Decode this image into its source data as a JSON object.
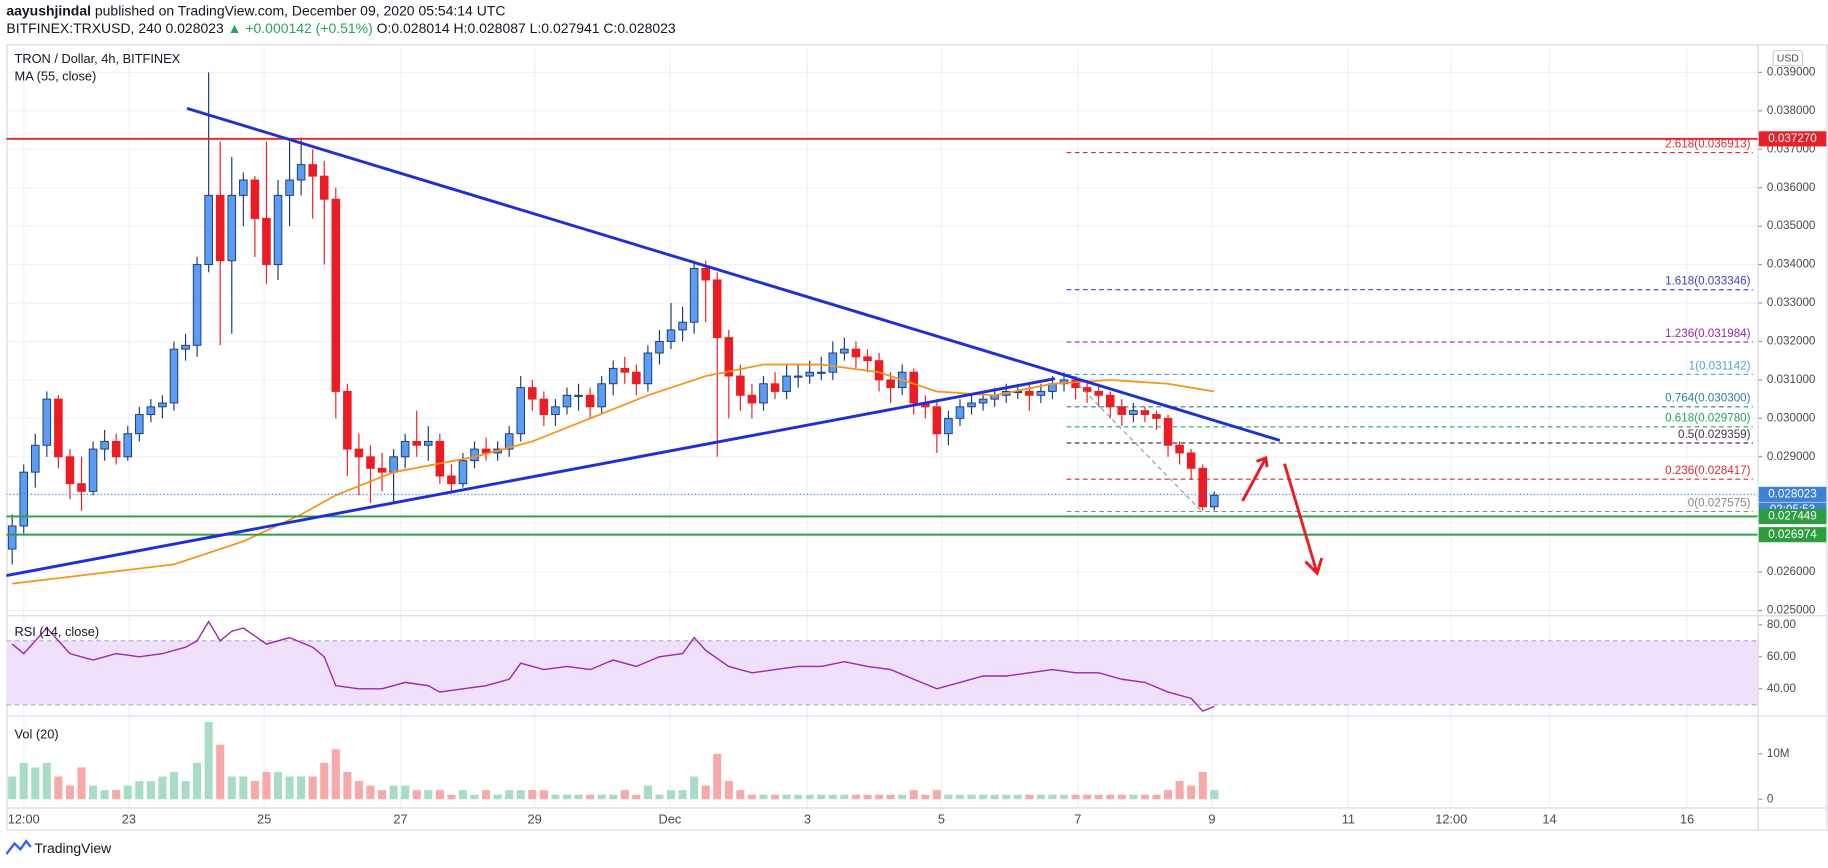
{
  "header": {
    "author": "aayushjindal",
    "published": "published on TradingView.com, December 09, 2020 05:54:14 UTC",
    "symbol": "BITFINEX:TRXUSD, 240",
    "last": "0.028023",
    "change": "▲ +0.000142 (+0.51%)",
    "ohlc": "O:0.028014 H:0.028087 L:0.027941 C:0.028023"
  },
  "currency": "USD",
  "logo": "TradingView",
  "chart_data": [
    {
      "type": "candlestick",
      "title": "TRON / Dollar, 4h, BITFINEX",
      "up_color": "#5b9cf6",
      "up_border": "#1b3a6b",
      "down_color": "#ec1c24",
      "grid": true,
      "open": [
        0.0266,
        0.0272,
        0.0286,
        0.0293,
        0.0305,
        0.029,
        0.0283,
        0.0281,
        0.0292,
        0.0294,
        0.029,
        0.0296,
        0.0301,
        0.0303,
        0.0304,
        0.0318,
        0.0319,
        0.034,
        0.0358,
        0.0341,
        0.0358,
        0.0362,
        0.0352,
        0.034,
        0.0358,
        0.0362,
        0.0366,
        0.0363,
        0.0357,
        0.0307,
        0.0292,
        0.029,
        0.0287,
        0.0286,
        0.029,
        0.0294,
        0.0293,
        0.0294,
        0.0285,
        0.0283,
        0.0289,
        0.0292,
        0.0291,
        0.0292,
        0.0296,
        0.0308,
        0.0305,
        0.0301,
        0.0303,
        0.0306,
        0.0306,
        0.0303,
        0.0309,
        0.0313,
        0.0312,
        0.0309,
        0.0317,
        0.032,
        0.0323,
        0.0325,
        0.0339,
        0.0336,
        0.0321,
        0.0311,
        0.0306,
        0.0304,
        0.0309,
        0.0307,
        0.0311,
        0.0311,
        0.0312,
        0.0312,
        0.0317,
        0.0318,
        0.0316,
        0.0315,
        0.031,
        0.0308,
        0.0312,
        0.0304,
        0.0303,
        0.0296,
        0.03,
        0.0303,
        0.0304,
        0.0305,
        0.0306,
        0.0307,
        0.0307,
        0.0306,
        0.0307,
        0.0309,
        0.031,
        0.0308,
        0.0307,
        0.0306,
        0.0303,
        0.0301,
        0.0302,
        0.0301,
        0.03,
        0.0293,
        0.0291,
        0.0287,
        0.0277
      ],
      "high": [
        0.0275,
        0.0288,
        0.0296,
        0.0307,
        0.0306,
        0.0292,
        0.029,
        0.0294,
        0.0297,
        0.0296,
        0.0298,
        0.0303,
        0.0305,
        0.0306,
        0.032,
        0.0322,
        0.0342,
        0.039,
        0.0372,
        0.0368,
        0.0364,
        0.0363,
        0.0372,
        0.0362,
        0.0372,
        0.0373,
        0.037,
        0.0367,
        0.036,
        0.0309,
        0.0296,
        0.0293,
        0.0291,
        0.0292,
        0.0296,
        0.0302,
        0.0298,
        0.0296,
        0.0288,
        0.0291,
        0.0294,
        0.0295,
        0.0294,
        0.0298,
        0.0311,
        0.031,
        0.0307,
        0.0305,
        0.0308,
        0.0309,
        0.0308,
        0.0311,
        0.0315,
        0.0316,
        0.0314,
        0.0319,
        0.0323,
        0.033,
        0.0329,
        0.0341,
        0.0341,
        0.0338,
        0.0323,
        0.0314,
        0.0309,
        0.0311,
        0.0312,
        0.0314,
        0.0314,
        0.0315,
        0.0316,
        0.032,
        0.0321,
        0.032,
        0.0318,
        0.0317,
        0.0312,
        0.0314,
        0.0313,
        0.0306,
        0.0305,
        0.0302,
        0.0305,
        0.0306,
        0.0307,
        0.0308,
        0.0309,
        0.0309,
        0.0309,
        0.0309,
        0.0311,
        0.0312,
        0.0311,
        0.031,
        0.0309,
        0.0307,
        0.0305,
        0.0304,
        0.0303,
        0.0302,
        0.0301,
        0.0294,
        0.0292,
        0.0288,
        0.0281
      ],
      "low": [
        0.0262,
        0.027,
        0.0282,
        0.029,
        0.0287,
        0.0279,
        0.0276,
        0.028,
        0.0289,
        0.0288,
        0.0289,
        0.0294,
        0.0299,
        0.03,
        0.0302,
        0.0315,
        0.0316,
        0.0338,
        0.0319,
        0.0322,
        0.035,
        0.0342,
        0.0335,
        0.0336,
        0.035,
        0.0358,
        0.0352,
        0.034,
        0.03,
        0.0285,
        0.028,
        0.0278,
        0.0281,
        0.0278,
        0.0287,
        0.029,
        0.0289,
        0.0283,
        0.0281,
        0.0282,
        0.0287,
        0.0289,
        0.0289,
        0.029,
        0.0294,
        0.0302,
        0.0298,
        0.0298,
        0.0301,
        0.0302,
        0.03,
        0.0301,
        0.0306,
        0.0309,
        0.0306,
        0.0307,
        0.0314,
        0.0318,
        0.032,
        0.0322,
        0.0325,
        0.029,
        0.03,
        0.0302,
        0.03,
        0.0302,
        0.0305,
        0.0305,
        0.0308,
        0.0309,
        0.031,
        0.031,
        0.0315,
        0.0313,
        0.0312,
        0.0307,
        0.0304,
        0.0306,
        0.0301,
        0.03,
        0.0291,
        0.0293,
        0.0298,
        0.0301,
        0.0302,
        0.0303,
        0.0304,
        0.0305,
        0.0302,
        0.0304,
        0.0305,
        0.0307,
        0.0305,
        0.0304,
        0.0303,
        0.03,
        0.0298,
        0.0299,
        0.0299,
        0.0297,
        0.029,
        0.0288,
        0.0284,
        0.0276,
        0.0276
      ],
      "close": [
        0.0272,
        0.0286,
        0.0293,
        0.0305,
        0.029,
        0.0283,
        0.0281,
        0.0292,
        0.0294,
        0.029,
        0.0296,
        0.0301,
        0.0303,
        0.0304,
        0.0318,
        0.0319,
        0.034,
        0.0358,
        0.0341,
        0.0358,
        0.0362,
        0.0352,
        0.034,
        0.0358,
        0.0362,
        0.0366,
        0.0363,
        0.0357,
        0.0307,
        0.0292,
        0.029,
        0.0287,
        0.0286,
        0.029,
        0.0294,
        0.0293,
        0.0294,
        0.0285,
        0.0283,
        0.0289,
        0.0292,
        0.0291,
        0.0292,
        0.0296,
        0.0308,
        0.0305,
        0.0301,
        0.0303,
        0.0306,
        0.0306,
        0.0303,
        0.0309,
        0.0313,
        0.0312,
        0.0309,
        0.0317,
        0.032,
        0.0323,
        0.0325,
        0.0339,
        0.0336,
        0.0321,
        0.0311,
        0.0306,
        0.0304,
        0.0309,
        0.0307,
        0.0311,
        0.0311,
        0.0312,
        0.0312,
        0.0317,
        0.0318,
        0.0316,
        0.0315,
        0.031,
        0.0308,
        0.0312,
        0.0304,
        0.0303,
        0.0296,
        0.03,
        0.0303,
        0.0304,
        0.0305,
        0.0306,
        0.0307,
        0.0307,
        0.0306,
        0.0307,
        0.0309,
        0.031,
        0.0308,
        0.0307,
        0.0306,
        0.0303,
        0.0301,
        0.0302,
        0.0301,
        0.03,
        0.0293,
        0.0291,
        0.0287,
        0.0277,
        0.028
      ],
      "series": [
        {
          "name": "MA (55, close)",
          "color": "#f7931a",
          "x": [
            0,
            14,
            20,
            25,
            28,
            33,
            40,
            45,
            50,
            55,
            60,
            65,
            70,
            75,
            80,
            85,
            90,
            95,
            100,
            104
          ],
          "values": [
            0.0257,
            0.0262,
            0.0268,
            0.0275,
            0.028,
            0.0286,
            0.029,
            0.0294,
            0.03,
            0.0306,
            0.0311,
            0.0314,
            0.0314,
            0.0312,
            0.0307,
            0.0306,
            0.0309,
            0.031,
            0.0309,
            0.0307
          ]
        }
      ],
      "xlim": [
        -0.5,
        151
      ],
      "xticks": [
        {
          "value": 1,
          "label": "12:00"
        },
        {
          "value": 10.1,
          "label": "23"
        },
        {
          "value": 21.8,
          "label": "25"
        },
        {
          "value": 33.6,
          "label": "27"
        },
        {
          "value": 45.2,
          "label": "29"
        },
        {
          "value": 56.9,
          "label": "Dec"
        },
        {
          "value": 68.8,
          "label": "3"
        },
        {
          "value": 80.4,
          "label": "5"
        },
        {
          "value": 92.2,
          "label": "7"
        },
        {
          "value": 103.8,
          "label": "9"
        },
        {
          "value": 115.6,
          "label": "11"
        },
        {
          "value": 124.5,
          "label": "12:00"
        },
        {
          "value": 133,
          "label": "14"
        },
        {
          "value": 144.9,
          "label": "16"
        }
      ],
      "ylim": [
        0.02488,
        0.03967
      ],
      "yticks": [
        {
          "value": 0.025,
          "label": "0.025000"
        },
        {
          "value": 0.026,
          "label": "0.026000"
        },
        {
          "value": 0.027,
          "label": "0.027000"
        },
        {
          "value": 0.028,
          "label": "0.028000"
        },
        {
          "value": 0.029,
          "label": "0.029000"
        },
        {
          "value": 0.03,
          "label": "0.030000"
        },
        {
          "value": 0.031,
          "label": "0.031000"
        },
        {
          "value": 0.032,
          "label": "0.032000"
        },
        {
          "value": 0.033,
          "label": "0.033000"
        },
        {
          "value": 0.034,
          "label": "0.034000"
        },
        {
          "value": 0.035,
          "label": "0.035000"
        },
        {
          "value": 0.036,
          "label": "0.036000"
        },
        {
          "value": 0.037,
          "label": "0.037000"
        },
        {
          "value": 0.038,
          "label": "0.038000"
        },
        {
          "value": 0.039,
          "label": "0.039000"
        }
      ],
      "hlines": [
        {
          "value": 0.03727,
          "label": "0.037270",
          "color": "#e8202a"
        },
        {
          "value": 0.028023,
          "label": "0.028023",
          "color": "#3d7fd9",
          "countdown": "02:05:53"
        },
        {
          "value": 0.027449,
          "label": "0.027449",
          "color": "#2c9e3f"
        },
        {
          "value": 0.026974,
          "label": "0.026974",
          "color": "#2c9e3f"
        }
      ],
      "fib": [
        {
          "label": "2.618(0.036913)",
          "value": 0.036913,
          "color": "#d32f2f"
        },
        {
          "label": "1.618(0.033346)",
          "value": 0.033346,
          "color": "#3f3fbf"
        },
        {
          "label": "1.236(0.031984)",
          "value": 0.031984,
          "color": "#9c27b0"
        },
        {
          "label": "1(0.031142)",
          "value": 0.031142,
          "color": "#4aa3df"
        },
        {
          "label": "0.764(0.030300)",
          "value": 0.0303,
          "color": "#2a7f9e"
        },
        {
          "label": "0.618(0.029780)",
          "value": 0.02978,
          "color": "#26a65b"
        },
        {
          "label": "0.5(0.029359)",
          "value": 0.029359,
          "color": "#4a2f4f"
        },
        {
          "label": "0.236(0.028417)",
          "value": 0.028417,
          "color": "#d32f2f"
        },
        {
          "label": "0(0.027575)",
          "value": 0.027575,
          "color": "#888888"
        }
      ]
    },
    {
      "type": "line",
      "title": "RSI (14, close)",
      "band": [
        30,
        70
      ],
      "band_color": "#efe0fb",
      "series": [
        {
          "name": "RSI",
          "color": "#9c27b0",
          "x": [
            0,
            1,
            3,
            5,
            7,
            9,
            11,
            13,
            15,
            16,
            17,
            18,
            19,
            20,
            22,
            24,
            26,
            27,
            28,
            30,
            32,
            34,
            36,
            37,
            39,
            41,
            43,
            44,
            46,
            48,
            50,
            52,
            54,
            56,
            58,
            59,
            60,
            62,
            64,
            66,
            68,
            70,
            72,
            74,
            76,
            78,
            80,
            82,
            84,
            86,
            88,
            90,
            92,
            94,
            96,
            98,
            100,
            102,
            103,
            104
          ],
          "values": [
            68,
            62,
            78,
            62,
            58,
            62,
            60,
            62,
            66,
            70,
            82,
            70,
            76,
            78,
            68,
            72,
            66,
            60,
            42,
            40,
            40,
            44,
            42,
            38,
            40,
            42,
            46,
            56,
            52,
            54,
            52,
            58,
            54,
            60,
            62,
            72,
            64,
            54,
            50,
            52,
            54,
            54,
            57,
            54,
            52,
            46,
            40,
            44,
            48,
            48,
            50,
            52,
            50,
            50,
            46,
            44,
            38,
            34,
            26,
            29
          ]
        }
      ],
      "xlim": [
        -0.5,
        151
      ],
      "ylim": [
        23.4,
        85.3
      ],
      "yticks": [
        {
          "value": 40,
          "label": "40.00"
        },
        {
          "value": 60,
          "label": "60.00"
        },
        {
          "value": 80,
          "label": "80.00"
        }
      ]
    },
    {
      "type": "bar",
      "title": "Vol (20)",
      "up_color": "#a8dcc4",
      "down_color": "#f7a8a8",
      "values": [
        5,
        8,
        7,
        8,
        5,
        3,
        7,
        3,
        2,
        2,
        3,
        4,
        4,
        5,
        6,
        4,
        8,
        17,
        12,
        5,
        5,
        4,
        6,
        6,
        5,
        5,
        5,
        8,
        11,
        6,
        4,
        3,
        2,
        3,
        3,
        2,
        2,
        2,
        1,
        2,
        1,
        2,
        1,
        2,
        2,
        2,
        2,
        1,
        1,
        1,
        1,
        1,
        1,
        2,
        1,
        3,
        1,
        2,
        2,
        5,
        3,
        10,
        4,
        2,
        1,
        1,
        1,
        1,
        1,
        1,
        1,
        1,
        1,
        1,
        1,
        1,
        1,
        1,
        2,
        1,
        2,
        1,
        1,
        1,
        1,
        1,
        1,
        1,
        1,
        1,
        1,
        1,
        1,
        1,
        1,
        1,
        1,
        1,
        1,
        1,
        2,
        4,
        3,
        6,
        2
      ],
      "xlim": [
        -0.5,
        151
      ],
      "ylim": [
        -1.8,
        18.2
      ],
      "yticks": [
        0,
        {
          "value": 10,
          "label": "10M"
        }
      ]
    }
  ]
}
